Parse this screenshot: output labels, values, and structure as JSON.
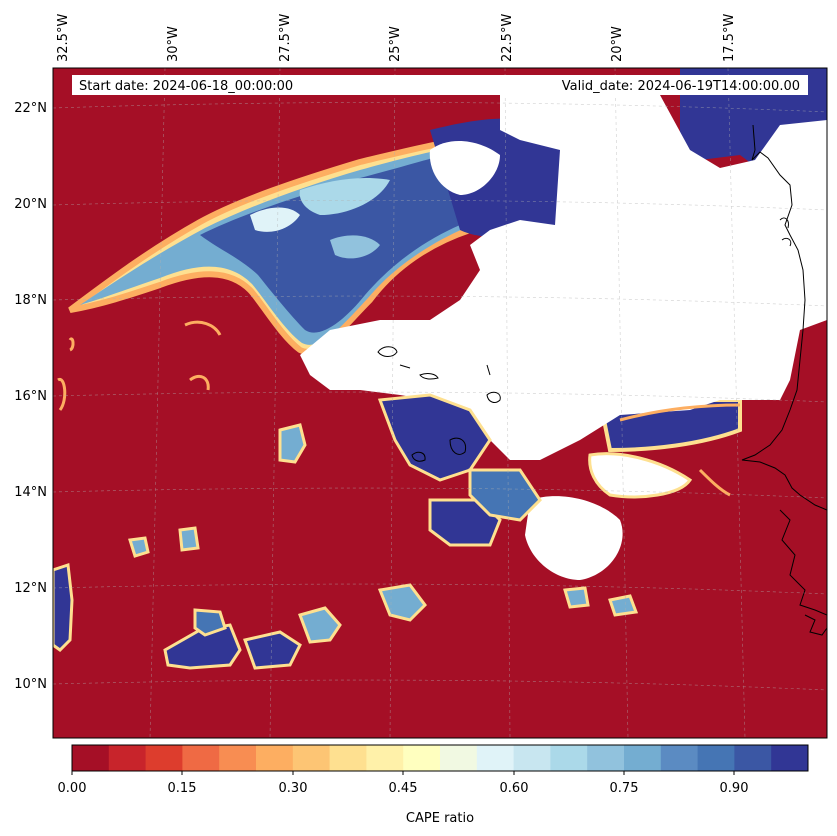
{
  "header": {
    "start_date": "Start date: 2024-06-18_00:00:00",
    "valid_date": "Valid_date: 2024-06-19T14:00:00.00"
  },
  "map": {
    "top_axis_labels": [
      "32.5°W",
      "30°W",
      "27.5°W",
      "25°W",
      "22.5°W",
      "20°W",
      "17.5°W"
    ],
    "left_axis_labels": [
      "22°N",
      "20°N",
      "18°N",
      "16°N",
      "14°N",
      "12°N",
      "10°N"
    ],
    "colors": {
      "low": "#a50f26",
      "high": "#313695",
      "masked": "#ffffff",
      "coast": "#000000"
    }
  },
  "colorbar": {
    "label": "CAPE ratio",
    "tick_labels": [
      "0.00",
      "0.15",
      "0.30",
      "0.45",
      "0.60",
      "0.75",
      "0.90"
    ],
    "colors": [
      "#a50f26",
      "#c8242b",
      "#dd3d2d",
      "#ef6a44",
      "#f88d52",
      "#fdae61",
      "#fdc574",
      "#fee090",
      "#fff1a9",
      "#ffffbf",
      "#f1f9e2",
      "#e0f3f8",
      "#c8e6f0",
      "#abd9e9",
      "#91c2dd",
      "#74add1",
      "#5b8bc2",
      "#4575b4",
      "#3b57a4",
      "#313695"
    ]
  }
}
